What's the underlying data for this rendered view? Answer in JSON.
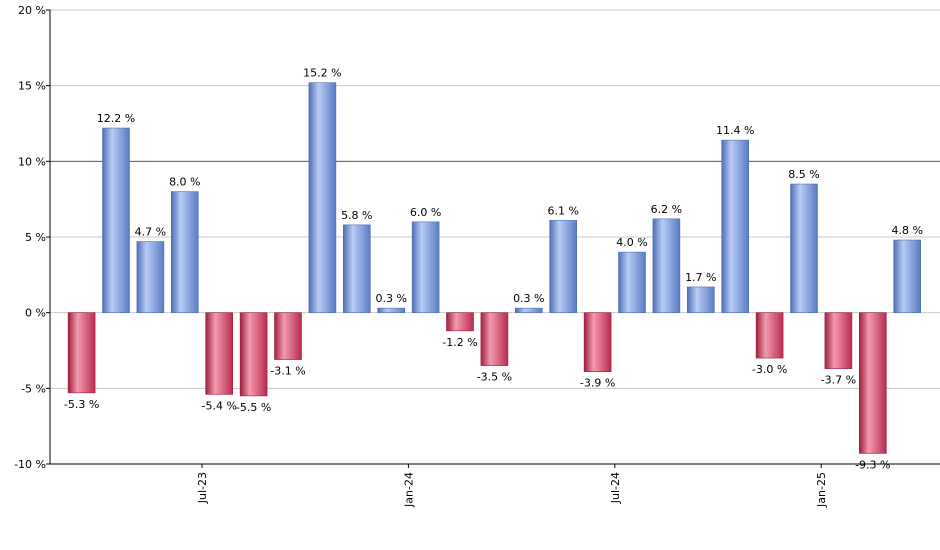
{
  "chart_data": {
    "type": "bar",
    "value_suffix": " %",
    "ylim": [
      -10,
      20
    ],
    "y_ticks": [
      -10,
      -5,
      0,
      5,
      10,
      15,
      20
    ],
    "reference_line": 10,
    "grid": "horizontal",
    "values": [
      -5.3,
      12.2,
      4.7,
      8.0,
      -5.4,
      -5.5,
      -3.1,
      15.2,
      5.8,
      0.3,
      6.0,
      -1.2,
      -3.5,
      0.3,
      6.1,
      -3.9,
      4.0,
      6.2,
      1.7,
      11.4,
      -3.0,
      8.5,
      -3.7,
      -9.3,
      4.8
    ],
    "value_labels": [
      "-5.3 %",
      "12.2 %",
      "4.7 %",
      "8.0 %",
      "-5.4 %",
      "-5.5 %",
      "-3.1 %",
      "15.2 %",
      "5.8 %",
      "0.3 %",
      "6.0 %",
      "-1.2 %",
      "-3.5 %",
      "0.3 %",
      "6.1 %",
      "-3.9 %",
      "4.0 %",
      "6.2 %",
      "1.7 %",
      "11.4 %",
      "-3.0 %",
      "8.5 %",
      "-3.7 %",
      "-9.3 %",
      "4.8 %"
    ],
    "x_tick_labels": [
      {
        "label": "Jul-23",
        "bar_index": 3.5
      },
      {
        "label": "Jan-24",
        "bar_index": 9.5
      },
      {
        "label": "Jul-24",
        "bar_index": 15.5
      },
      {
        "label": "Jan-25",
        "bar_index": 21.5
      }
    ],
    "colors": {
      "positive": "#7f9fe0",
      "positive_light": "#b7ccf4",
      "positive_dark": "#4f6fb3",
      "negative": "#d5476a",
      "negative_light": "#f29aae",
      "negative_dark": "#9e1f3c",
      "reference_line": "#2e7d32",
      "grid": "#c8c8c8",
      "axis": "#000000"
    }
  }
}
